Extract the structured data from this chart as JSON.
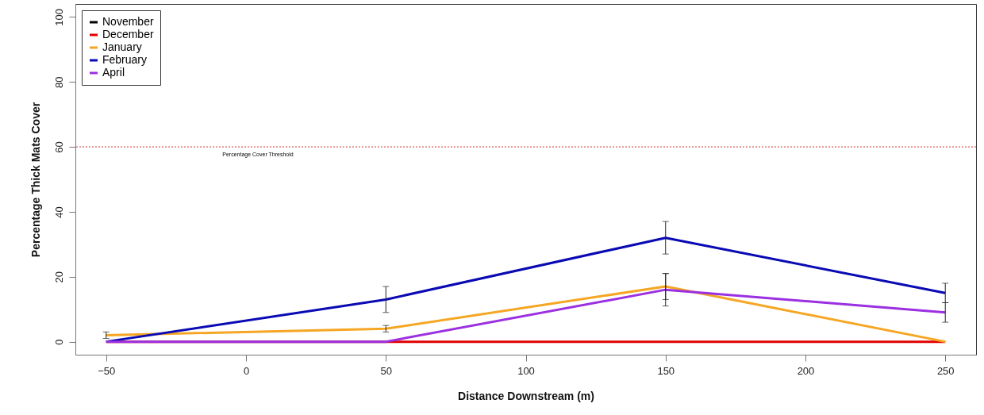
{
  "chart_data": {
    "type": "line",
    "xlabel": "Distance Downstream (m)",
    "ylabel": "Percentage Thick Mats Cover",
    "x": [
      -50,
      50,
      150,
      250
    ],
    "series": [
      {
        "name": "November",
        "color": "#000000",
        "values": [
          null,
          null,
          null,
          null
        ]
      },
      {
        "name": "December",
        "color": "#e00000",
        "values": [
          0,
          0,
          0,
          0
        ]
      },
      {
        "name": "January",
        "color": "#f5a623",
        "values": [
          2,
          4,
          17,
          0
        ],
        "errors": [
          1,
          1,
          4,
          null
        ]
      },
      {
        "name": "February",
        "color": "#0a0ab4",
        "values": [
          0,
          13,
          32,
          15
        ],
        "errors": [
          null,
          4,
          5,
          3
        ]
      },
      {
        "name": "April",
        "color": "#9b30e0",
        "values": [
          0,
          0,
          16,
          9
        ],
        "errors": [
          null,
          null,
          5,
          3
        ]
      }
    ],
    "xlim": [
      -61,
      261
    ],
    "ylim": [
      -4,
      104
    ],
    "xticks": [
      -50,
      0,
      50,
      100,
      150,
      200,
      250
    ],
    "yticks": [
      0,
      20,
      40,
      60,
      80,
      100
    ],
    "ref_lines": [
      {
        "axis": "y",
        "value": 60,
        "label": "Percentage Cover Threshold",
        "color": "#d03030",
        "line_style": "dotted"
      }
    ],
    "legend": "top left",
    "grid": false,
    "marker": "none",
    "line_style": "solid"
  }
}
